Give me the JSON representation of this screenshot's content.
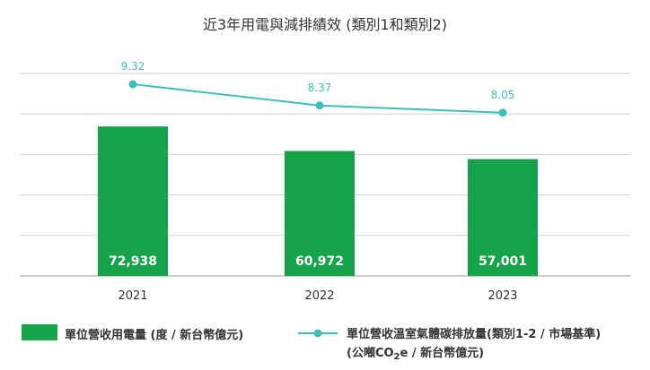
{
  "chart_data": {
    "type": "bar",
    "title": "近3年用電與減排績效 (類別1和類別2)",
    "categories": [
      "2021",
      "2022",
      "2023"
    ],
    "series": [
      {
        "name": "單位營收用電量 (度 / 新台幣億元)",
        "kind": "bar",
        "color": "#16a34a",
        "values": [
          72938,
          60972,
          57001
        ],
        "labels": [
          "72,938",
          "60,972",
          "57,001"
        ]
      },
      {
        "name": "單位營收溫室氣體碳排放量(類別1-2 / 市場基準)",
        "name_line2_prefix": "(公噸CO",
        "name_line2_sub": "2",
        "name_line2_suffix": "e / 新台幣億元)",
        "kind": "line",
        "color": "#3dbfb8",
        "values": [
          9.32,
          8.37,
          8.05
        ],
        "labels": [
          "9.32",
          "8.37",
          "8.05"
        ]
      }
    ],
    "grid": true,
    "legend_position": "bottom"
  }
}
